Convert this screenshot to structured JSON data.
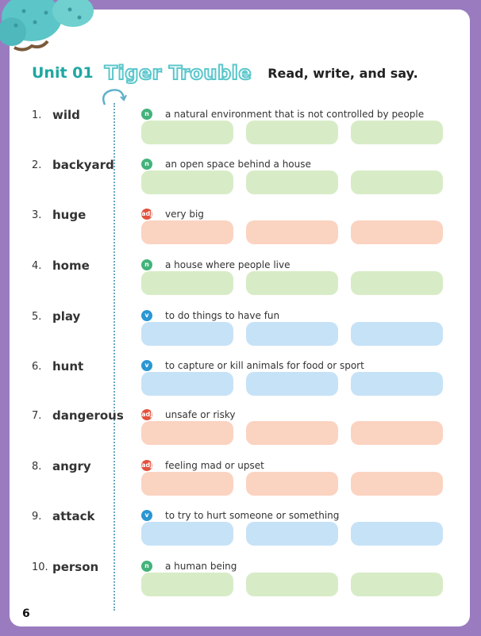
{
  "header": {
    "unit": "Unit 01",
    "title": "Tiger Trouble",
    "instruction": "Read, write, and say."
  },
  "colors": {
    "n": {
      "badge": "#43b37a",
      "box": "#d7ecc6"
    },
    "adj": {
      "badge": "#e2523e",
      "box": "#fbd3c1"
    },
    "v": {
      "badge": "#2b96d3",
      "box": "#c6e2f7"
    }
  },
  "entries": [
    {
      "num": "1.",
      "word": "wild",
      "pos": "n",
      "def": "a natural environment that is not controlled by people"
    },
    {
      "num": "2.",
      "word": "backyard",
      "pos": "n",
      "def": "an open space behind a house"
    },
    {
      "num": "3.",
      "word": "huge",
      "pos": "adj",
      "def": "very big"
    },
    {
      "num": "4.",
      "word": "home",
      "pos": "n",
      "def": "a house where people live"
    },
    {
      "num": "5.",
      "word": "play",
      "pos": "v",
      "def": "to do things to have fun"
    },
    {
      "num": "6.",
      "word": "hunt",
      "pos": "v",
      "def": "to capture or kill animals for food or sport"
    },
    {
      "num": "7.",
      "word": "dangerous",
      "pos": "adj",
      "def": "unsafe or risky"
    },
    {
      "num": "8.",
      "word": "angry",
      "pos": "adj",
      "def": "feeling mad or upset"
    },
    {
      "num": "9.",
      "word": "attack",
      "pos": "v",
      "def": "to try to hurt someone or something"
    },
    {
      "num": "10.",
      "word": "person",
      "pos": "n",
      "def": "a human being"
    }
  ],
  "page_number": "6"
}
